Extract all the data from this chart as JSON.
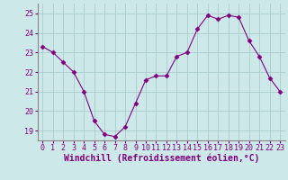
{
  "x": [
    0,
    1,
    2,
    3,
    4,
    5,
    6,
    7,
    8,
    9,
    10,
    11,
    12,
    13,
    14,
    15,
    16,
    17,
    18,
    19,
    20,
    21,
    22,
    23
  ],
  "y": [
    23.3,
    23.0,
    22.5,
    22.0,
    21.0,
    19.5,
    18.8,
    18.7,
    19.2,
    20.4,
    21.6,
    21.8,
    21.8,
    22.8,
    23.0,
    24.2,
    24.9,
    24.7,
    24.9,
    24.8,
    23.6,
    22.8,
    21.7,
    21.0
  ],
  "line_color": "#800080",
  "marker": "D",
  "marker_size": 2.5,
  "bg_color": "#cce8e8",
  "grid_color": "#aacccc",
  "xlabel": "Windchill (Refroidissement éolien,°C)",
  "xlabel_color": "#800080",
  "tick_color": "#800080",
  "spine_color": "#888888",
  "ylim": [
    18.5,
    25.5
  ],
  "xlim": [
    -0.5,
    23.5
  ],
  "yticks": [
    19,
    20,
    21,
    22,
    23,
    24,
    25
  ],
  "xticks": [
    0,
    1,
    2,
    3,
    4,
    5,
    6,
    7,
    8,
    9,
    10,
    11,
    12,
    13,
    14,
    15,
    16,
    17,
    18,
    19,
    20,
    21,
    22,
    23
  ],
  "tick_fontsize": 6.0,
  "xlabel_fontsize": 7.0
}
